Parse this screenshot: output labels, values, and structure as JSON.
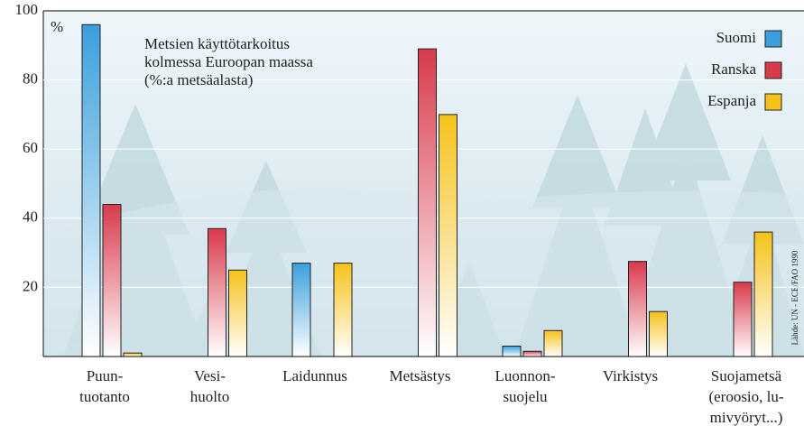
{
  "chart_data": {
    "type": "bar",
    "title": [
      "Metsien käyttötarkoitus",
      "kolmessa Euroopan maassa",
      "(%:a metsäalasta)"
    ],
    "y_unit": "%",
    "source": "Lähde: UN - ECE/FAO 1990",
    "categories": [
      [
        "Puun-",
        "tuotanto"
      ],
      [
        "Vesi-",
        "huolto"
      ],
      [
        "Laidunnus"
      ],
      [
        "Metsästys"
      ],
      [
        "Luonnon-",
        "suojelu"
      ],
      [
        "Virkistys"
      ],
      [
        "Suojametsä",
        "(eroosio, lu-",
        "mivyöryt...)"
      ]
    ],
    "series": [
      {
        "name": "Suomi",
        "color": "#3a9fdc",
        "values": [
          96,
          null,
          27,
          null,
          3,
          null,
          null
        ]
      },
      {
        "name": "Ranska",
        "color": "#d83a4c",
        "values": [
          44,
          37,
          null,
          89,
          1.5,
          27.5,
          21.5
        ]
      },
      {
        "name": "Espanja",
        "color": "#f5c21a",
        "values": [
          1,
          25,
          27,
          70,
          7.5,
          13,
          36
        ]
      }
    ],
    "ylim": [
      0,
      100
    ],
    "yticks": [
      20,
      40,
      60,
      80,
      100
    ],
    "grid": true,
    "legend": "top-right"
  }
}
